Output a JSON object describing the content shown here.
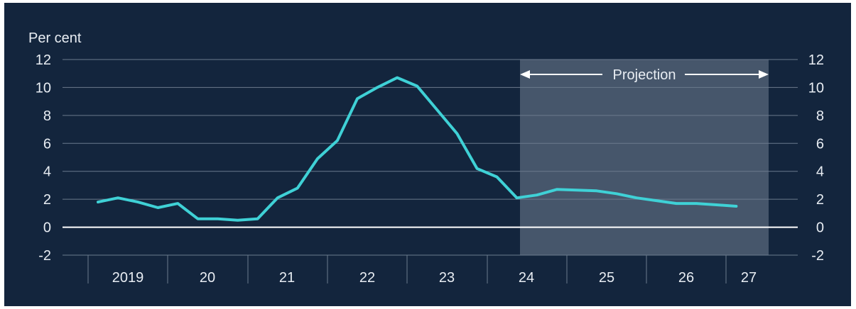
{
  "chart_data": {
    "type": "line",
    "ylabel": "Per cent",
    "ylim": [
      -2,
      12
    ],
    "yticks": [
      -2,
      0,
      2,
      4,
      6,
      8,
      10,
      12
    ],
    "year_labels": [
      "2019",
      "20",
      "21",
      "22",
      "23",
      "24",
      "25",
      "26",
      "27"
    ],
    "projection_label": "Projection",
    "projection_range": [
      20.0,
      32.5
    ],
    "grid": true,
    "colors": {
      "background": "#13253d",
      "line": "#3fd1d6",
      "projection_shade": "#46566b",
      "grid": "#6b7a8d",
      "text": "#e8edf3"
    },
    "series": [
      {
        "x": [
          0.5,
          1.5,
          2.5,
          3.5,
          4.5,
          5.5,
          6.5,
          7.5,
          8.5,
          9.5,
          10.5,
          11.5,
          12.5,
          13.5,
          14.5,
          15.5,
          16.5,
          17.5,
          18.5,
          19.5,
          20.5,
          21.5,
          22.5,
          23.5,
          24.5,
          25.5,
          26.5,
          27.5,
          28.5,
          29.5,
          30.5,
          31.5,
          32.5
        ],
        "values": [
          1.8,
          2.1,
          1.8,
          1.4,
          1.7,
          0.6,
          0.6,
          0.5,
          0.6,
          2.1,
          2.8,
          4.9,
          6.2,
          9.2,
          10.0,
          10.7,
          10.1,
          8.4,
          6.7,
          4.2,
          3.6,
          2.1,
          2.3,
          2.7,
          2.65,
          2.6,
          2.4,
          2.1,
          1.9,
          1.7,
          1.7,
          1.6,
          1.5
        ]
      }
    ]
  }
}
